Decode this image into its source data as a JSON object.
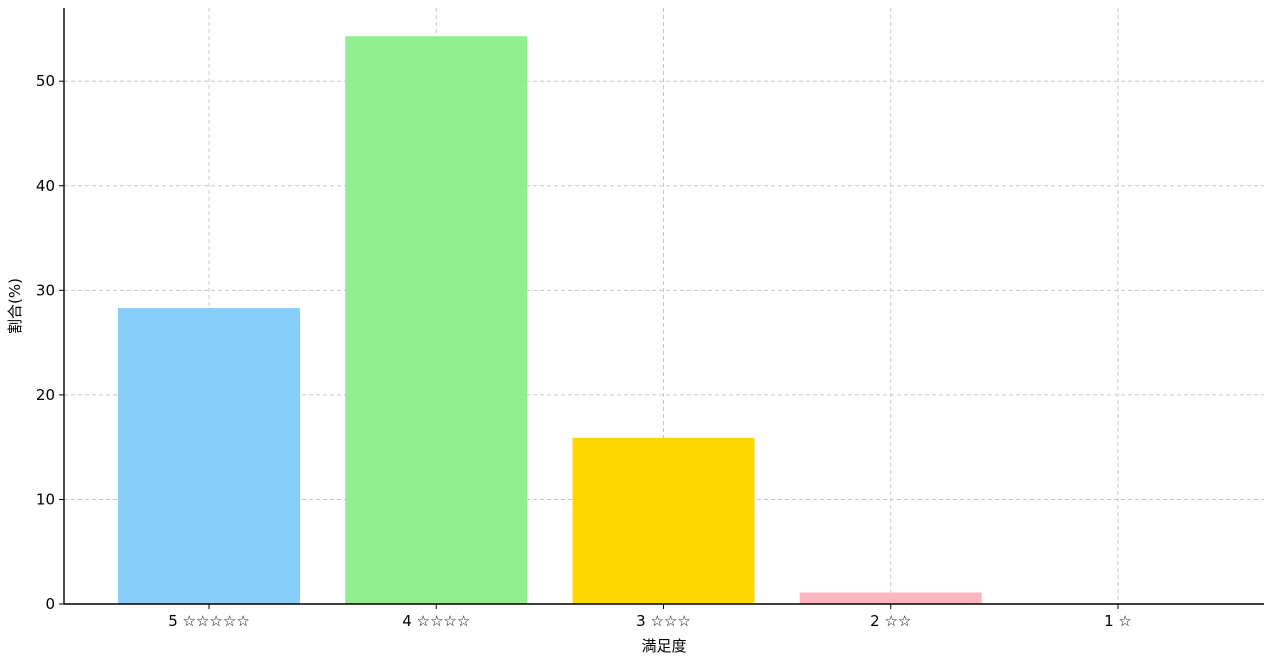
{
  "chart_data": {
    "type": "bar",
    "categories": [
      "5 ☆☆☆☆☆",
      "4 ☆☆☆☆",
      "3 ☆☆☆",
      "2 ☆☆",
      "1 ☆"
    ],
    "values": [
      28.3,
      54.3,
      15.9,
      1.1,
      0.0
    ],
    "colors": [
      "#87cefa",
      "#90ee90",
      "#ffd700",
      "#ffb6c1",
      "#dda0dd"
    ],
    "xlabel": "満足度",
    "ylabel": "割合(%)",
    "ylim": [
      0,
      57
    ],
    "yticks": [
      0,
      10,
      20,
      30,
      40,
      50
    ],
    "grid": true,
    "legend": "none"
  }
}
